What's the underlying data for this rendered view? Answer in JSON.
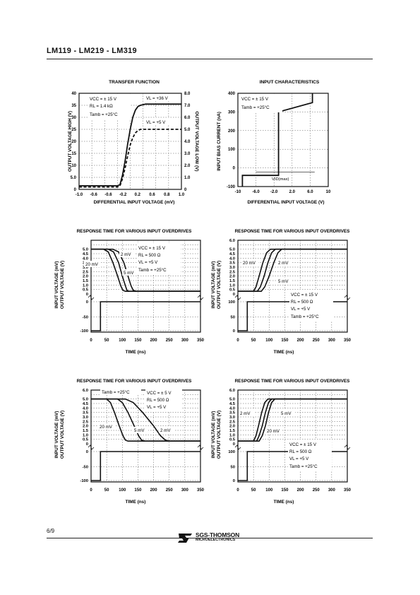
{
  "page": {
    "header": "LM119 - LM219 - LM319",
    "page_number": "6/9",
    "logo_name": "SGS-THOMSON",
    "logo_sub": "MICROELECTRONICS"
  },
  "chart_data": [
    {
      "id": "transfer",
      "type": "line",
      "title": "TRANSFER FUNCTION",
      "xlabel": "DIFFERENTIAL INPUT VOLTAGE (mV)",
      "ylabel": "OUTPUT VOLTAGE HIGH (V)",
      "ylabel_right": "OUTPUT VOLTAGE LOW (V)",
      "xlim": [
        -1.0,
        1.0
      ],
      "ylim": [
        0,
        40
      ],
      "xticks": [
        "-1.0",
        "-0.6",
        "-0.6",
        "-0.2",
        "0.2",
        "0.6",
        "0.8",
        "1.0"
      ],
      "yticks": [
        "0",
        "5.0",
        "10",
        "15",
        "20",
        "25",
        "30",
        "35",
        "40"
      ],
      "yticks_right": [
        "0",
        "1.0",
        "2.0",
        "3.0",
        "4.0",
        "5.0",
        "6.0",
        "7.0",
        "8.0"
      ],
      "grid": true,
      "annotations": [
        "VCC = ± 15 V",
        "RL = 1.4 kΩ",
        "Tamb = +25°C",
        "VL = +36 V",
        "VL = +5 V"
      ],
      "series": [
        {
          "name": "VL = +36 V",
          "x": [
            -1.0,
            -0.25,
            -0.2,
            -0.15,
            -0.1,
            -0.05,
            0.0,
            0.05,
            0.1,
            0.15,
            0.2,
            0.3,
            0.6,
            1.0
          ],
          "y": [
            1.5,
            1.5,
            2,
            6,
            12,
            19,
            25,
            30,
            33,
            34.5,
            35,
            35.5,
            35.5,
            35.5
          ],
          "dashed": false
        },
        {
          "name": "VL = +5 V",
          "x": [
            -1.0,
            -0.25,
            -0.2,
            -0.15,
            -0.1,
            -0.05,
            0.0,
            0.05,
            0.1,
            0.15,
            0.2,
            0.3,
            0.6,
            1.0
          ],
          "y": [
            1.0,
            1.0,
            1.5,
            4.5,
            9,
            14,
            18.5,
            21.5,
            23.5,
            24.5,
            25,
            25,
            25,
            25
          ],
          "dashed": true
        }
      ]
    },
    {
      "id": "input_char",
      "type": "line",
      "title": "INPUT CHARACTERISTICS",
      "xlabel": "DIFFERENTIAL INPUT VOLTAGE (V)",
      "ylabel": "INPUT BIAS CURRENT (nA)",
      "xlim": [
        -10,
        10
      ],
      "ylim": [
        -100,
        400
      ],
      "xticks": [
        "-10",
        "-6.0",
        "-2.0",
        "2.0",
        "6.0",
        "10"
      ],
      "yticks": [
        "-100",
        "0",
        "100",
        "200",
        "300",
        "400"
      ],
      "grid": true,
      "annotations": [
        "VCC = ± 15 V",
        "Tamb = +25°C",
        "VID(max)"
      ],
      "series": [
        {
          "name": "",
          "x": [
            -9.0,
            -9.0,
            -6.0,
            -1.0,
            -1.0,
            6.5,
            6.5
          ],
          "y": [
            -100,
            -40,
            -40,
            -40,
            300,
            350,
            400
          ],
          "dashed": false
        }
      ]
    },
    {
      "id": "resp1",
      "type": "line",
      "title": "RESPONSE TIME FOR VARIOUS INPUT OVERDRIVES",
      "xlabel": "TIME (ns)",
      "ylabel": "OUTPUT VOLTAGE (V)",
      "ylabel2": "INPUT VOLTAGE (mV)",
      "xlim": [
        0,
        350
      ],
      "ylim": [
        0,
        6
      ],
      "xticks": [
        "0",
        "50",
        "100",
        "150",
        "200",
        "250",
        "300",
        "350"
      ],
      "yticks": [
        "0",
        "0.5",
        "1.0",
        "1.5",
        "2.0",
        "2.5",
        "3.0",
        "3.5",
        "4.0",
        "4.5",
        "5.0"
      ],
      "input_yticks": [
        "0",
        "-50",
        "-100"
      ],
      "grid": true,
      "annotations": [
        "VCC = ± 15 V",
        "RL = 500 Ω",
        "VL = +5 V",
        "Tamb = +25°C",
        "20 mV",
        "5 mV",
        "2 mV"
      ],
      "series": [
        {
          "name": "20 mV",
          "x": [
            0,
            40,
            55,
            70,
            85,
            95,
            102,
            110,
            350
          ],
          "y": [
            5.0,
            5.0,
            4.7,
            3.5,
            2.0,
            0.9,
            0.4,
            0.3,
            0.3
          ]
        },
        {
          "name": "5 mV",
          "x": [
            0,
            55,
            72,
            88,
            100,
            110,
            115,
            122,
            350
          ],
          "y": [
            5.0,
            5.0,
            4.7,
            3.5,
            2.0,
            0.9,
            0.4,
            0.3,
            0.3
          ]
        },
        {
          "name": "2 mV",
          "x": [
            0,
            70,
            88,
            105,
            118,
            128,
            135,
            145,
            350
          ],
          "y": [
            5.0,
            5.0,
            4.7,
            3.5,
            2.0,
            0.9,
            0.4,
            0.3,
            0.3
          ]
        }
      ],
      "input_x": [
        0,
        30,
        30,
        350
      ],
      "input_y": [
        -100,
        -100,
        0,
        0
      ]
    },
    {
      "id": "resp2",
      "type": "line",
      "title": "RESPONSE TIME FOR VARIOUS INPUT OVERDRIVES",
      "xlabel": "TIME (ns)",
      "ylabel": "OUTPUT VOLTAGE (V)",
      "ylabel2": "INPUT VOLTAGE (mV)",
      "xlim": [
        0,
        350
      ],
      "ylim": [
        0,
        6
      ],
      "xticks": [
        "0",
        "50",
        "100",
        "150",
        "200",
        "250",
        "300",
        "350"
      ],
      "yticks": [
        "0",
        "0.5",
        "1.0",
        "1.5",
        "2.0",
        "2.5",
        "3.0",
        "3.5",
        "4.0",
        "4.5",
        "5.0",
        "6.0"
      ],
      "input_yticks": [
        "100",
        "50",
        "0"
      ],
      "grid": true,
      "annotations": [
        "VCC = ± 15 V",
        "RL = 500 Ω",
        "VL = +5 V",
        "Tamb = +25°C",
        "20 mV",
        "5 mV",
        "2 mV"
      ],
      "series": [
        {
          "name": "20 mV",
          "x": [
            0,
            50,
            58,
            68,
            80,
            92,
            104,
            115,
            350
          ],
          "y": [
            0.3,
            0.3,
            0.8,
            2.0,
            3.5,
            4.6,
            5.0,
            5.0,
            5.0
          ]
        },
        {
          "name": "5 mV",
          "x": [
            0,
            62,
            72,
            84,
            96,
            108,
            120,
            130,
            350
          ],
          "y": [
            0.3,
            0.3,
            0.8,
            2.0,
            3.5,
            4.6,
            5.0,
            5.0,
            5.0
          ]
        },
        {
          "name": "2 mV",
          "x": [
            0,
            75,
            86,
            100,
            115,
            128,
            140,
            150,
            350
          ],
          "y": [
            0.3,
            0.3,
            0.8,
            2.0,
            3.5,
            4.6,
            5.0,
            5.0,
            5.0
          ]
        }
      ],
      "input_x": [
        0,
        30,
        30,
        350
      ],
      "input_y": [
        0,
        0,
        100,
        100
      ]
    },
    {
      "id": "resp3",
      "type": "line",
      "title": "RESPONSE TIME FOR VARIOUS INPUT OVERDRIVES",
      "xlabel": "TIME (ns)",
      "ylabel": "OUTPUT VOLTAGE (V)",
      "ylabel2": "INPUT VOLTAGE (mV)",
      "xlim": [
        0,
        350
      ],
      "ylim": [
        0,
        6
      ],
      "xticks": [
        "0",
        "50",
        "100",
        "150",
        "200",
        "250",
        "300",
        "350"
      ],
      "yticks": [
        "0",
        "0.5",
        "1.0",
        "1.5",
        "2.0",
        "2.5",
        "3.0",
        "3.5",
        "4.0",
        "4.5",
        "5.0",
        "6.0"
      ],
      "input_yticks": [
        "0",
        "-50",
        "-100"
      ],
      "grid": true,
      "annotations": [
        "Tamb = +25°C",
        "VCC = ± 5 V",
        "RL = 500 Ω",
        "VL = +5 V",
        "20 mV",
        "5 mV",
        "2 mV"
      ],
      "series": [
        {
          "name": "20 mV",
          "x": [
            0,
            50,
            62,
            75,
            90,
            102,
            110,
            118,
            350
          ],
          "y": [
            5.0,
            5.0,
            4.6,
            3.5,
            2.0,
            0.9,
            0.4,
            0.3,
            0.3
          ]
        },
        {
          "name": "5 mV",
          "x": [
            0,
            85,
            100,
            118,
            138,
            152,
            162,
            172,
            350
          ],
          "y": [
            5.0,
            5.0,
            4.6,
            3.5,
            2.0,
            0.9,
            0.4,
            0.3,
            0.3
          ]
        },
        {
          "name": "2 mV",
          "x": [
            0,
            110,
            135,
            165,
            200,
            222,
            238,
            250,
            350
          ],
          "y": [
            5.0,
            5.0,
            4.6,
            3.5,
            2.0,
            0.9,
            0.4,
            0.3,
            0.3
          ]
        }
      ],
      "input_x": [
        0,
        30,
        30,
        350
      ],
      "input_y": [
        -100,
        -100,
        0,
        0
      ]
    },
    {
      "id": "resp4",
      "type": "line",
      "title": "RESPONSE TIME FOR VARIOUS INPUT OVERDRIVES",
      "xlabel": "TIME (ns)",
      "ylabel": "OUTPUT VOLTAGE (V)",
      "ylabel2": "INPUT VOLTAGE (mV)",
      "xlim": [
        0,
        350
      ],
      "ylim": [
        0,
        6
      ],
      "xticks": [
        "0",
        "50",
        "100",
        "150",
        "200",
        "250",
        "300",
        "350"
      ],
      "yticks": [
        "0",
        "0.5",
        "1.0",
        "1.5",
        "2.0",
        "2.5",
        "3.0",
        "3.5",
        "4.0",
        "4.5",
        "5.0",
        "6.0"
      ],
      "input_yticks": [
        "100",
        "50",
        "0"
      ],
      "grid": true,
      "annotations": [
        "VCC = ± 15 V",
        "RL = 500 Ω",
        "VL = +5 V",
        "Tamb = +25°C",
        "2 mV",
        "5 mV",
        "20 mV"
      ],
      "series": [
        {
          "name": "20 mV",
          "x": [
            0,
            50,
            58,
            66,
            76,
            86,
            96,
            105,
            350
          ],
          "y": [
            0.3,
            0.3,
            0.9,
            2.0,
            3.5,
            4.6,
            5.0,
            5.0,
            5.0
          ]
        },
        {
          "name": "5 mV",
          "x": [
            0,
            60,
            68,
            78,
            88,
            98,
            108,
            116,
            350
          ],
          "y": [
            0.3,
            0.3,
            0.9,
            2.0,
            3.5,
            4.6,
            5.0,
            5.0,
            5.0
          ]
        },
        {
          "name": "2 mV",
          "x": [
            0,
            68,
            78,
            88,
            98,
            108,
            118,
            126,
            350
          ],
          "y": [
            0.3,
            0.3,
            0.9,
            2.0,
            3.5,
            4.6,
            5.0,
            5.0,
            5.0
          ]
        }
      ],
      "input_x": [
        0,
        30,
        30,
        350
      ],
      "input_y": [
        0,
        0,
        100,
        100
      ]
    }
  ]
}
